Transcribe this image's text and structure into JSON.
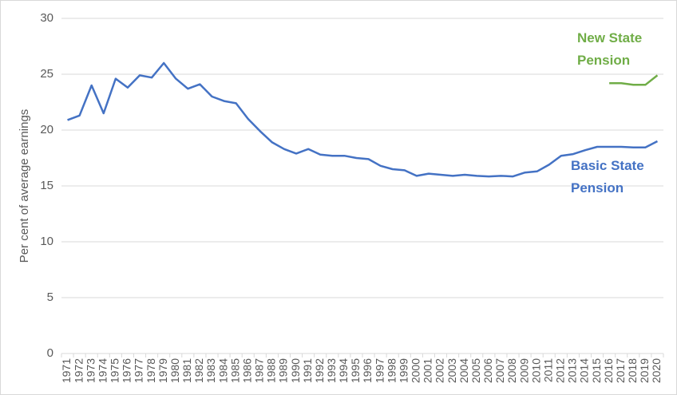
{
  "chart_data": {
    "type": "line",
    "y_label": "Per cent of average earnings",
    "categories": [
      "1971",
      "1972",
      "1973",
      "1974",
      "1975",
      "1976",
      "1977",
      "1978",
      "1979",
      "1980",
      "1981",
      "1982",
      "1983",
      "1984",
      "1985",
      "1986",
      "1987",
      "1988",
      "1989",
      "1990",
      "1991",
      "1992",
      "1993",
      "1994",
      "1995",
      "1996",
      "1997",
      "1998",
      "1999",
      "2000",
      "2001",
      "2002",
      "2003",
      "2004",
      "2005",
      "2006",
      "2007",
      "2008",
      "2009",
      "2010",
      "2011",
      "2012",
      "2013",
      "2014",
      "2015",
      "2016",
      "2017",
      "2018",
      "2019",
      "2020"
    ],
    "series": [
      {
        "name": "Basic State Pension",
        "color": "#4472c4",
        "values": [
          20.9,
          21.3,
          24.0,
          21.5,
          24.6,
          23.8,
          24.9,
          24.7,
          26.0,
          24.6,
          23.7,
          24.1,
          23.0,
          22.6,
          22.4,
          21.0,
          19.9,
          18.9,
          18.3,
          17.9,
          18.3,
          17.8,
          17.7,
          17.7,
          17.5,
          17.4,
          16.8,
          16.5,
          16.4,
          15.9,
          16.1,
          16.0,
          15.9,
          16.0,
          15.9,
          15.85,
          15.9,
          15.85,
          16.2,
          16.3,
          16.9,
          17.7,
          17.85,
          18.2,
          18.5,
          18.5,
          18.5,
          18.45,
          18.45,
          19.0
        ]
      },
      {
        "name": "New State Pension",
        "color": "#70ad47",
        "values": [
          null,
          null,
          null,
          null,
          null,
          null,
          null,
          null,
          null,
          null,
          null,
          null,
          null,
          null,
          null,
          null,
          null,
          null,
          null,
          null,
          null,
          null,
          null,
          null,
          null,
          null,
          null,
          null,
          null,
          null,
          null,
          null,
          null,
          null,
          null,
          null,
          null,
          null,
          null,
          null,
          null,
          null,
          null,
          null,
          null,
          24.2,
          24.2,
          24.05,
          24.05,
          24.9
        ]
      }
    ],
    "ylim": [
      0,
      30
    ],
    "yticks": [
      0,
      5,
      10,
      15,
      20,
      25,
      30
    ],
    "grid": true
  }
}
